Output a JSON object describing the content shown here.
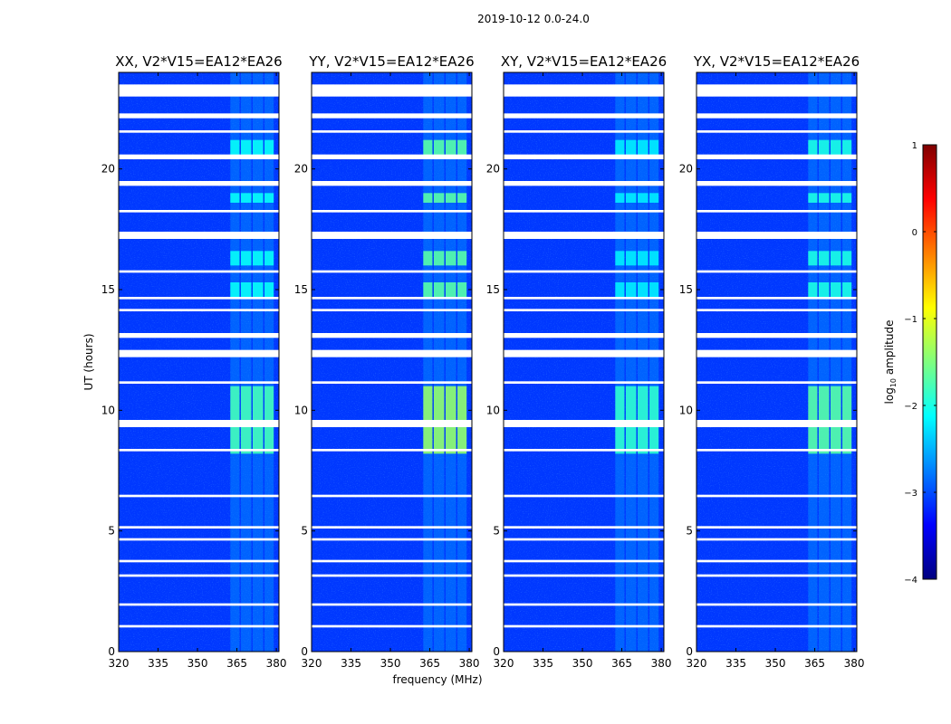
{
  "chart_data": {
    "type": "heatmap",
    "title": "2019-10-12 0.0-24.0",
    "xlabel": "frequency (MHz)",
    "ylabel": "UT (hours)",
    "xlim": [
      320,
      381
    ],
    "ylim": [
      0,
      24
    ],
    "xticks": [
      "320",
      "335",
      "350",
      "365",
      "380"
    ],
    "xtick_values": [
      320,
      335,
      350,
      365,
      380
    ],
    "yticks": [
      "0",
      "5",
      "10",
      "15",
      "20"
    ],
    "ytick_values": [
      0,
      5,
      10,
      15,
      20
    ],
    "colorbar": {
      "label_prefix": "log",
      "label_sub": "10",
      "label_suffix": " amplitude",
      "range": [
        -4,
        1
      ],
      "ticks": [
        "1",
        "0",
        "−1",
        "−2",
        "−3",
        "−4"
      ],
      "tick_values": [
        1,
        0,
        -1,
        -2,
        -3,
        -4
      ],
      "colormap": [
        "#00007f",
        "#0000ff",
        "#007fff",
        "#00ffff",
        "#7fff7f",
        "#ffff00",
        "#ff7f00",
        "#ff0000",
        "#7f0000"
      ]
    },
    "panels": [
      {
        "title": "XX, V2*V15=EA12*EA26",
        "bright_band_level": -1.8
      },
      {
        "title": "YY, V2*V15=EA12*EA26",
        "bright_band_level": -1.4
      },
      {
        "title": "XY, V2*V15=EA12*EA26",
        "bright_band_level": -1.9
      },
      {
        "title": "YX, V2*V15=EA12*EA26",
        "bright_band_level": -1.7
      }
    ],
    "background_level": -3.1,
    "rfi_subbands_mhz": [
      [
        362.5,
        366.0
      ],
      [
        366.5,
        370.5
      ],
      [
        371.0,
        375.0
      ],
      [
        375.5,
        379.0
      ]
    ],
    "strong_rfi_hours": [
      [
        8.2,
        11.0
      ],
      [
        14.7,
        15.3
      ],
      [
        16.0,
        16.6
      ],
      [
        20.4,
        21.2
      ],
      [
        18.6,
        19.0
      ]
    ],
    "flagged_hours": [
      [
        23.0,
        23.5
      ],
      [
        22.1,
        22.3
      ],
      [
        21.5,
        21.6
      ],
      [
        20.4,
        20.6
      ],
      [
        19.3,
        19.5
      ],
      [
        18.2,
        18.3
      ],
      [
        17.1,
        17.4
      ],
      [
        15.7,
        15.8
      ],
      [
        14.6,
        14.7
      ],
      [
        14.1,
        14.2
      ],
      [
        13.0,
        13.2
      ],
      [
        12.2,
        12.5
      ],
      [
        11.1,
        11.2
      ],
      [
        9.3,
        9.6
      ],
      [
        8.3,
        8.4
      ],
      [
        6.4,
        6.5
      ],
      [
        5.1,
        5.2
      ],
      [
        4.6,
        4.7
      ],
      [
        3.7,
        3.8
      ],
      [
        3.1,
        3.2
      ],
      [
        1.9,
        2.0
      ],
      [
        1.0,
        1.1
      ]
    ]
  }
}
